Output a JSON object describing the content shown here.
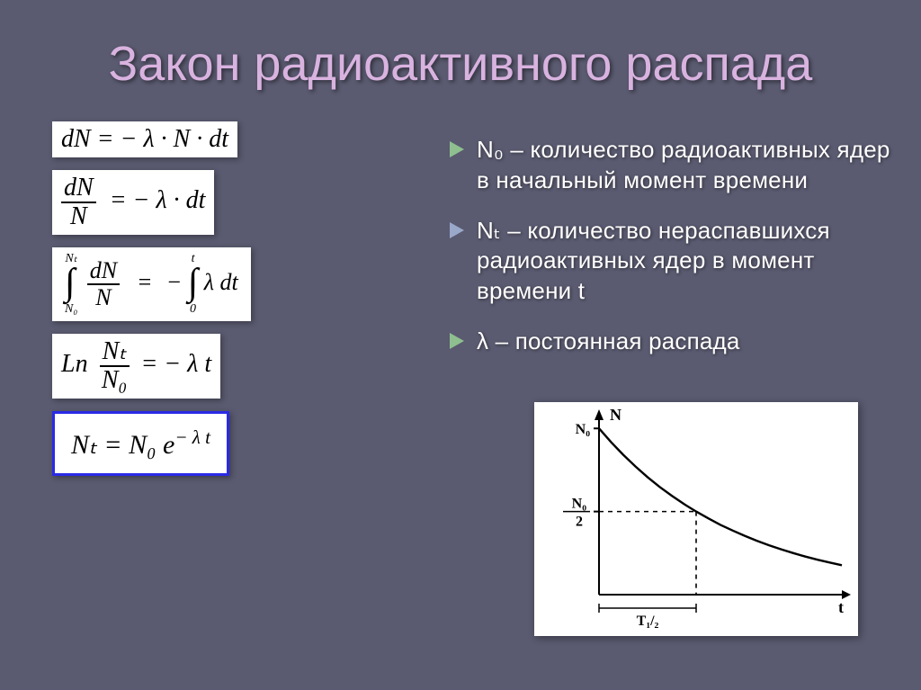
{
  "title": "Закон радиоактивного распада",
  "title_color": "#d9b3e0",
  "background_color": "#5a5a70",
  "equations": {
    "eq1": "dN = − λ · N · dt",
    "eq2_num": "dN",
    "eq2_den": "N",
    "eq2_rhs": "= − λ · dt",
    "eq3_lower_left": "N₀",
    "eq3_upper_left": "Nₜ",
    "eq3_lower_right": "0",
    "eq3_upper_right": "t",
    "eq3_frac_num": "dN",
    "eq3_frac_den": "N",
    "eq3_rhs_lambda": "λ dt",
    "eq4_lhs_Ln": "Ln",
    "eq4_frac_num": "Nₜ",
    "eq4_frac_den": "N₀",
    "eq4_rhs": "= − λ t",
    "eq5": "Nₜ  =  N₀  e^{− λ t}",
    "eq5_base": "Nₜ  =  N₀  e",
    "eq5_exp": "− λ t"
  },
  "bullets": [
    {
      "text": "N₀ – количество радиоактивных ядер в начальный момент времени",
      "tri_color": "#8fbf8f"
    },
    {
      "text": "Nₜ – количество нераспавшихся радиоактивных ядер в момент времени t",
      "tri_color": "#9aa8c9"
    },
    {
      "text": "λ – постоянная распада",
      "tri_color": "#8fbf8f"
    }
  ],
  "equation_font_sizes": {
    "base": 28,
    "boxed": 30
  },
  "box_border_color": "#2a2ae6",
  "chart": {
    "type": "line",
    "background_color": "#ffffff",
    "axis_color": "#000000",
    "curve_color": "#000000",
    "dash_color": "#000000",
    "line_width": 2.4,
    "xlabel": "t",
    "ylabel": "N",
    "y_ticks": [
      {
        "label": "N₀",
        "frac": 1.0
      },
      {
        "label": "N₀/2",
        "frac": 0.5
      }
    ],
    "x_tick_half": "T₁/₂",
    "curve_points": [
      [
        0.0,
        1.0
      ],
      [
        0.05,
        0.917
      ],
      [
        0.1,
        0.841
      ],
      [
        0.15,
        0.771
      ],
      [
        0.2,
        0.707
      ],
      [
        0.25,
        0.648
      ],
      [
        0.3,
        0.595
      ],
      [
        0.35,
        0.545
      ],
      [
        0.4,
        0.5
      ],
      [
        0.45,
        0.459
      ],
      [
        0.5,
        0.42
      ],
      [
        0.55,
        0.386
      ],
      [
        0.6,
        0.354
      ],
      [
        0.65,
        0.324
      ],
      [
        0.7,
        0.297
      ],
      [
        0.75,
        0.273
      ],
      [
        0.8,
        0.25
      ],
      [
        0.85,
        0.229
      ],
      [
        0.9,
        0.21
      ],
      [
        0.95,
        0.193
      ],
      [
        1.0,
        0.177
      ]
    ],
    "xlim": [
      0,
      1
    ],
    "ylim": [
      0,
      1.05
    ],
    "half_life_x": 0.4,
    "label_fontsize": 18,
    "tick_fontsize": 16
  }
}
